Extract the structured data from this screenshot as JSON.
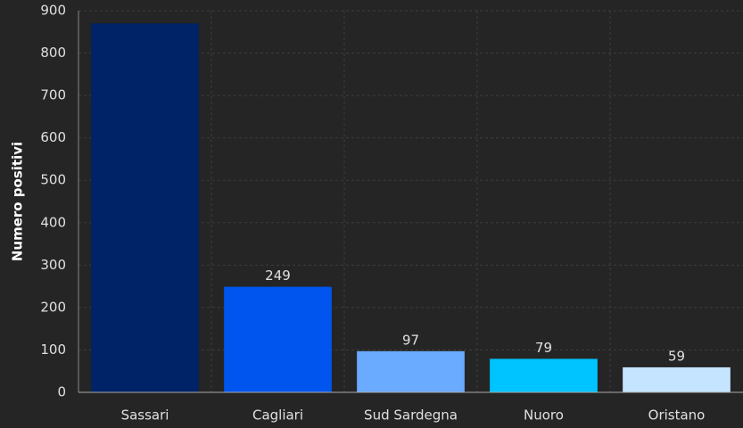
{
  "chart_data": {
    "type": "bar",
    "ylabel": "Numero positivi",
    "categories": [
      "Sassari",
      "Cagliari",
      "Sud Sardegna",
      "Nuoro",
      "Oristano"
    ],
    "values": [
      870,
      249,
      97,
      79,
      59
    ],
    "colors": [
      "#002266",
      "#0055ee",
      "#6aaaff",
      "#00c4ff",
      "#c4e4ff"
    ],
    "ylim": [
      0,
      900
    ],
    "yticks": [
      0,
      100,
      200,
      300,
      400,
      500,
      600,
      700,
      800,
      900
    ],
    "grid": true
  }
}
